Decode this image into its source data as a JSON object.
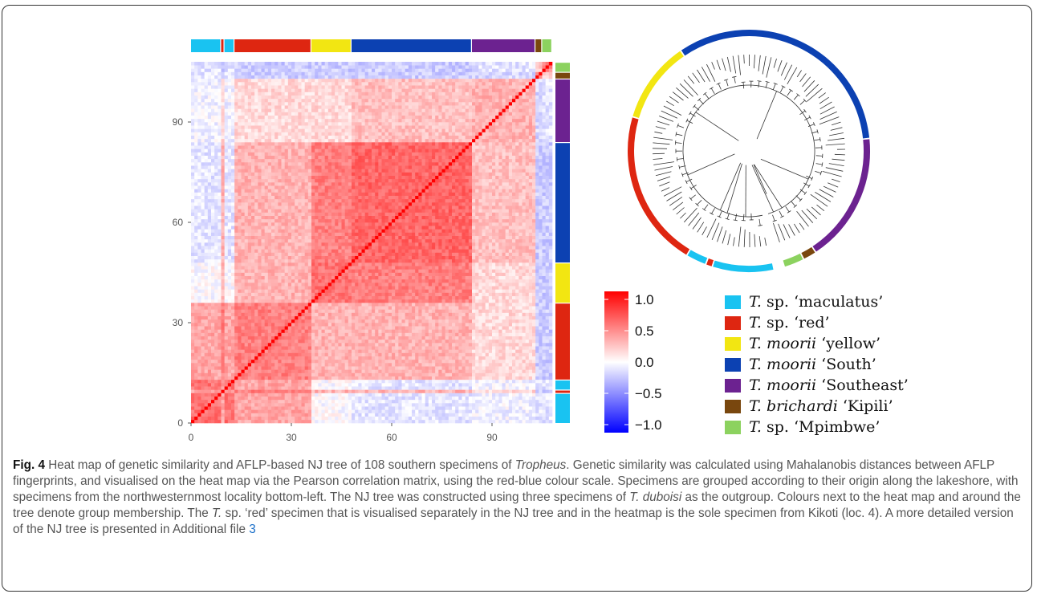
{
  "figure": {
    "heatmap": {
      "x_ticks": [
        "0",
        "30",
        "60",
        "90"
      ],
      "y_ticks": [
        "0",
        "30",
        "60",
        "90"
      ],
      "x_tick_values": [
        0,
        30,
        60,
        90
      ],
      "y_tick_values": [
        0,
        30,
        60,
        90
      ],
      "range": [
        0,
        108
      ]
    },
    "colorbar": {
      "ticks": [
        "1.0",
        "0.5",
        "0.0",
        "−0.5",
        "−1.0"
      ],
      "tick_values": [
        1.0,
        0.5,
        0.0,
        -0.5,
        -1.0
      ],
      "colors": {
        "high": "#ff0000",
        "mid": "#ffffff",
        "low": "#0000ff"
      }
    },
    "groups": [
      {
        "genus": "T.",
        "species": "sp.",
        "label": "‘maculatus’",
        "color": "#19c3f1",
        "ranges": [
          [
            0,
            9
          ],
          [
            10,
            13
          ]
        ]
      },
      {
        "genus": "T.",
        "species": "sp.",
        "label": "‘red’",
        "color": "#de2611",
        "ranges": [
          [
            9,
            10
          ],
          [
            13,
            36
          ]
        ]
      },
      {
        "genus": "T.",
        "species": "moorii",
        "label": "‘yellow’",
        "color": "#f2e612",
        "ranges": [
          [
            36,
            48
          ]
        ]
      },
      {
        "genus": "T.",
        "species": "moorii",
        "label": "‘South’",
        "color": "#0c41b2",
        "ranges": [
          [
            48,
            84
          ]
        ]
      },
      {
        "genus": "T.",
        "species": "moorii",
        "label": "‘Southeast’",
        "color": "#6c2290",
        "ranges": [
          [
            84,
            103
          ]
        ]
      },
      {
        "genus": "T.",
        "species": "brichardi",
        "label": "‘Kipili’",
        "color": "#79470e",
        "ranges": [
          [
            103,
            105
          ]
        ]
      },
      {
        "genus": "T.",
        "species": "sp.",
        "label": "‘Mpimbwe’",
        "color": "#8cd25f",
        "ranges": [
          [
            105,
            108
          ]
        ]
      }
    ]
  },
  "caption": {
    "fig_label": "Fig. 4",
    "s1": " Heat map of genetic similarity and AFLP-based NJ tree of 108 southern specimens of ",
    "genus": "Tropheus",
    "s2": ". Genetic similarity was calculated using Mahalanobis distances between AFLP fingerprints, and visualised on the heat map via the Pearson correlation matrix, using the red-blue colour scale. Specimens are grouped according to their origin along the lakeshore, with specimens from the northwesternmost locality bottom-left. The NJ tree was constructed using three specimens of ",
    "outgroup": "T. duboisi",
    "s3": " as the outgroup. Colours next to the heat map and around the tree denote group membership. The ",
    "red_sp": "T.",
    "s4": " sp. ‘red’ specimen that is visualised separately in the NJ tree and in the heatmap is the sole specimen from Kikoti (loc. 4). A more detailed version of the NJ tree is presented in Additional file ",
    "file_ref": "3"
  }
}
